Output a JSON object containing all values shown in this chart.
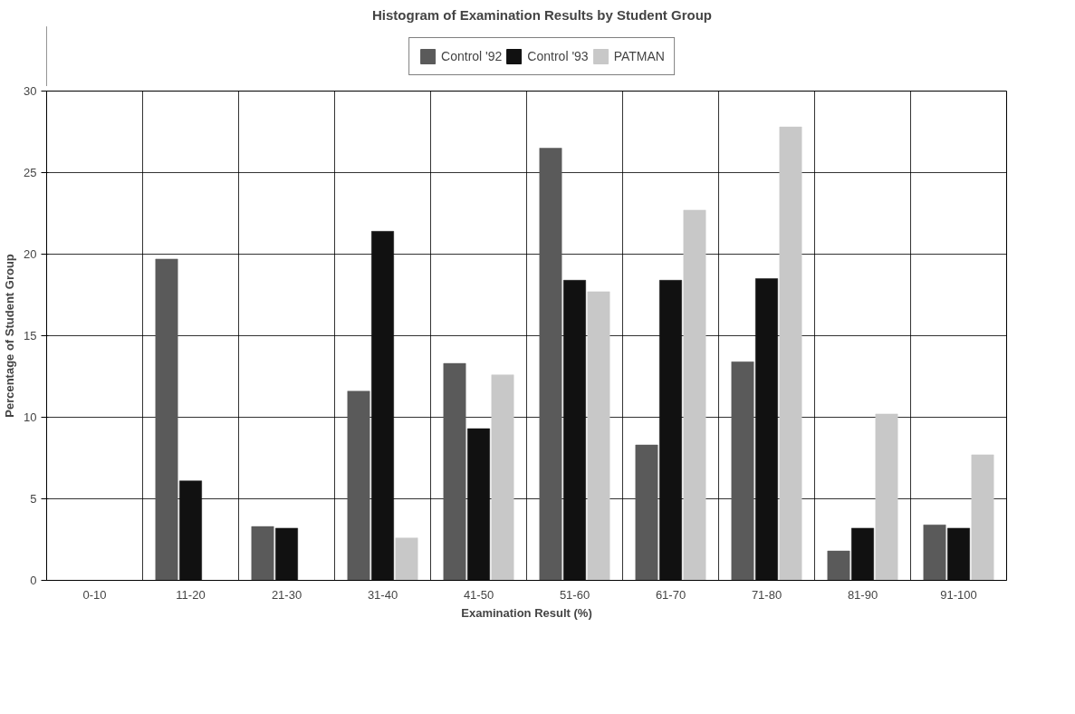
{
  "chart_data": {
    "type": "bar",
    "title": "Histogram of Examination Results by Student Group",
    "xlabel": "Examination Result (%)",
    "ylabel": "Percentage of Student Group",
    "categories": [
      "0-10",
      "11-20",
      "21-30",
      "31-40",
      "41-50",
      "51-60",
      "61-70",
      "71-80",
      "81-90",
      "91-100"
    ],
    "series": [
      {
        "name": "Control '92",
        "color": "#5a5a5a",
        "values": [
          0,
          19.7,
          3.3,
          11.6,
          13.3,
          26.5,
          8.3,
          13.4,
          1.8,
          3.4
        ]
      },
      {
        "name": "Control '93",
        "color": "#111111",
        "values": [
          0,
          6.1,
          3.2,
          21.4,
          9.3,
          18.4,
          18.4,
          18.5,
          3.2,
          3.2
        ]
      },
      {
        "name": "PATMAN",
        "color": "#c8c8c8",
        "values": [
          0,
          0,
          0,
          2.6,
          12.6,
          17.7,
          22.7,
          27.8,
          10.2,
          7.7
        ]
      }
    ],
    "ylim": [
      0,
      30
    ],
    "yticks": [
      0,
      5,
      10,
      15,
      20,
      25,
      30
    ],
    "grid": true,
    "legend": "top"
  }
}
